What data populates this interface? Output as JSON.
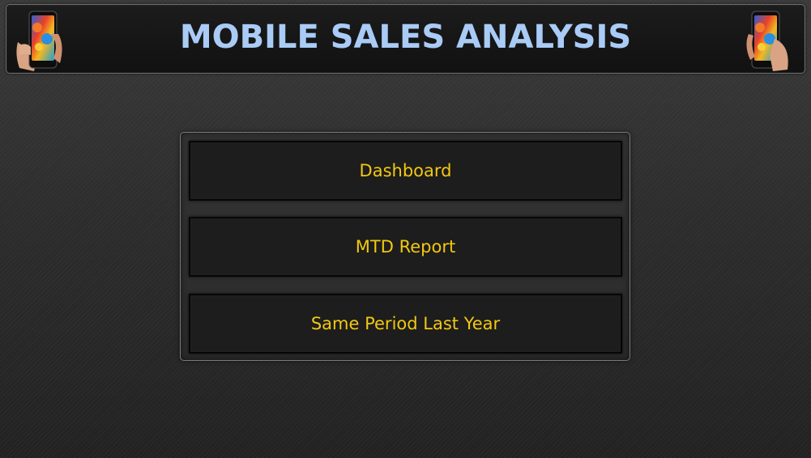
{
  "header": {
    "title": "MOBILE SALES ANALYSIS",
    "left_icon": "smartphone-in-hand-icon",
    "right_icon": "smartphone-in-hand-icon"
  },
  "menu": {
    "items": [
      {
        "label": "Dashboard"
      },
      {
        "label": "MTD Report"
      },
      {
        "label": "Same Period Last Year"
      }
    ]
  },
  "colors": {
    "title": "#a9cbf6",
    "button_text": "#f2c811",
    "button_bg": "#1d1d1d",
    "panel_border": "#7a7a7a",
    "background": "#2c2c2c"
  }
}
